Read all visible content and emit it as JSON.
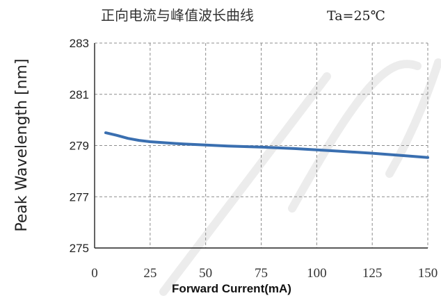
{
  "chart_data": {
    "type": "line",
    "title": "正向电流与峰值波长曲线",
    "subtitle": "Ta=25℃",
    "xlabel": "Forward Current(mA)",
    "ylabel": "Peak Wavelength [nm]",
    "xlim": [
      0,
      150
    ],
    "ylim": [
      275,
      283
    ],
    "xticks": [
      0,
      25,
      50,
      75,
      100,
      125,
      150
    ],
    "yticks": [
      275,
      277,
      279,
      281,
      283
    ],
    "grid": true,
    "series": [
      {
        "color": "#3a6fb0",
        "x": [
          5,
          10,
          15,
          20,
          25,
          30,
          40,
          50,
          60,
          75,
          90,
          100,
          110,
          125,
          140,
          150
        ],
        "y": [
          279.5,
          279.4,
          279.28,
          279.2,
          279.15,
          279.12,
          279.06,
          279.02,
          278.98,
          278.94,
          278.88,
          278.83,
          278.78,
          278.7,
          278.6,
          278.53
        ]
      }
    ]
  }
}
